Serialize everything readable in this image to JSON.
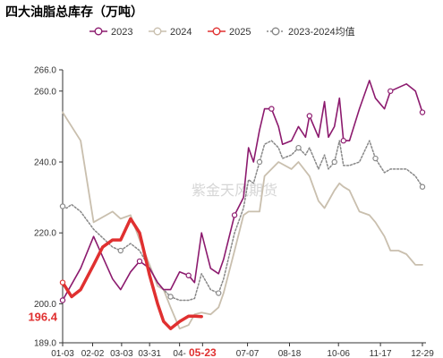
{
  "chart_data": {
    "type": "line",
    "title": "四大油脂总库存（万吨）",
    "watermark": "紫金天风期货",
    "xlabel": "",
    "ylabel": "",
    "ylim": [
      189.0,
      266.0
    ],
    "y_ticks": [
      "266.0",
      "260.0",
      "240.0",
      "220.0",
      "200.0",
      "189.0"
    ],
    "x_range": [
      "01-03",
      "12-29"
    ],
    "x_ticks": [
      "01-03",
      "02-02",
      "03-03",
      "03-31",
      "04-",
      "05-23",
      "07-07",
      "08-18",
      "10-06",
      "11-17",
      "12-29"
    ],
    "highlight_label": "196.4",
    "grid": false,
    "legend_position": "top",
    "series": [
      {
        "name": "2023",
        "color": "#8c1a6e",
        "marker": "circle",
        "points": [
          [
            "01-03",
            201.0
          ],
          [
            "01-21",
            210.0
          ],
          [
            "02-03",
            219.0
          ],
          [
            "02-22",
            207.0
          ],
          [
            "03-02",
            204.0
          ],
          [
            "03-12",
            209.0
          ],
          [
            "03-21",
            212.0
          ],
          [
            "03-31",
            210.0
          ],
          [
            "04-08",
            206.0
          ],
          [
            "04-14",
            204.0
          ],
          [
            "04-21",
            204.0
          ],
          [
            "04-30",
            209.0
          ],
          [
            "05-09",
            208.0
          ],
          [
            "05-15",
            206.0
          ],
          [
            "05-22",
            220.0
          ],
          [
            "05-31",
            210.0
          ],
          [
            "06-08",
            208.5
          ],
          [
            "06-13",
            212.5
          ],
          [
            "06-24",
            225.0
          ],
          [
            "07-03",
            230.0
          ],
          [
            "07-08",
            244.0
          ],
          [
            "07-13",
            240.0
          ],
          [
            "07-19",
            249.0
          ],
          [
            "07-24",
            255.0
          ],
          [
            "07-31",
            255.0
          ],
          [
            "08-07",
            250.0
          ],
          [
            "08-11",
            245.0
          ],
          [
            "08-20",
            246.0
          ],
          [
            "08-27",
            250.0
          ],
          [
            "09-03",
            247.0
          ],
          [
            "09-07",
            253.0
          ],
          [
            "09-16",
            247.0
          ],
          [
            "09-22",
            257.0
          ],
          [
            "09-26",
            247.0
          ],
          [
            "10-02",
            250.0
          ],
          [
            "10-07",
            258.0
          ],
          [
            "10-11",
            246.0
          ],
          [
            "10-17",
            246.0
          ],
          [
            "10-27",
            255.0
          ],
          [
            "11-06",
            263.0
          ],
          [
            "11-12",
            258.0
          ],
          [
            "11-21",
            255.0
          ],
          [
            "11-27",
            260.0
          ],
          [
            "12-05",
            261.0
          ],
          [
            "12-13",
            262.0
          ],
          [
            "12-22",
            260.0
          ],
          [
            "12-29",
            254.0
          ]
        ]
      },
      {
        "name": "2024",
        "color": "#c9bfae",
        "marker": "none",
        "points": [
          [
            "01-03",
            254.0
          ],
          [
            "01-21",
            246.0
          ],
          [
            "02-03",
            223.0
          ],
          [
            "02-22",
            226.0
          ],
          [
            "03-02",
            224.0
          ],
          [
            "03-12",
            225.0
          ],
          [
            "03-21",
            218.0
          ],
          [
            "03-31",
            211.0
          ],
          [
            "04-08",
            205.0
          ],
          [
            "04-14",
            204.0
          ],
          [
            "04-21",
            199.0
          ],
          [
            "04-30",
            193.0
          ],
          [
            "05-09",
            194.0
          ],
          [
            "05-15",
            197.0
          ],
          [
            "05-22",
            197.5
          ],
          [
            "05-31",
            197.0
          ],
          [
            "06-08",
            199.0
          ],
          [
            "06-13",
            203.0
          ],
          [
            "06-24",
            215.0
          ],
          [
            "07-03",
            225.0
          ],
          [
            "07-08",
            226.0
          ],
          [
            "07-19",
            226.0
          ],
          [
            "07-24",
            236.0
          ],
          [
            "08-07",
            240.0
          ],
          [
            "08-20",
            238.0
          ],
          [
            "08-27",
            240.0
          ],
          [
            "09-07",
            236.0
          ],
          [
            "09-16",
            229.0
          ],
          [
            "09-22",
            227.0
          ],
          [
            "10-02",
            232.0
          ],
          [
            "10-07",
            234.0
          ],
          [
            "10-11",
            233.0
          ],
          [
            "10-17",
            232.0
          ],
          [
            "10-27",
            226.0
          ],
          [
            "11-06",
            225.0
          ],
          [
            "11-12",
            223.0
          ],
          [
            "11-21",
            219.0
          ],
          [
            "11-27",
            215.0
          ],
          [
            "12-05",
            215.0
          ],
          [
            "12-13",
            214.0
          ],
          [
            "12-22",
            211.0
          ],
          [
            "12-29",
            211.0
          ]
        ]
      },
      {
        "name": "2025",
        "color": "#e03030",
        "marker": "circle",
        "points": [
          [
            "01-03",
            206.0
          ],
          [
            "01-12",
            202.0
          ],
          [
            "01-21",
            204.0
          ],
          [
            "02-03",
            211.0
          ],
          [
            "02-12",
            216.0
          ],
          [
            "02-22",
            218.0
          ],
          [
            "03-02",
            218.0
          ],
          [
            "03-12",
            224.0
          ],
          [
            "03-21",
            220.0
          ],
          [
            "03-31",
            208.0
          ],
          [
            "04-08",
            200.0
          ],
          [
            "04-14",
            195.0
          ],
          [
            "04-21",
            193.0
          ],
          [
            "04-30",
            195.0
          ],
          [
            "05-09",
            196.5
          ],
          [
            "05-15",
            196.5
          ],
          [
            "05-22",
            196.4
          ]
        ]
      },
      {
        "name": "2023-2024均值",
        "color": "#888888",
        "marker": "circle",
        "dashed": true,
        "points": [
          [
            "01-03",
            227.5
          ],
          [
            "01-07",
            227.0
          ],
          [
            "01-12",
            228.0
          ],
          [
            "01-21",
            226.0
          ],
          [
            "02-03",
            221.0
          ],
          [
            "02-22",
            216.0
          ],
          [
            "03-02",
            215.0
          ],
          [
            "03-12",
            217.0
          ],
          [
            "03-21",
            215.0
          ],
          [
            "03-31",
            210.0
          ],
          [
            "04-08",
            206.0
          ],
          [
            "04-14",
            204.0
          ],
          [
            "04-21",
            202.0
          ],
          [
            "04-30",
            201.0
          ],
          [
            "05-09",
            201.0
          ],
          [
            "05-15",
            201.5
          ],
          [
            "05-22",
            208.5
          ],
          [
            "05-31",
            204.0
          ],
          [
            "06-08",
            203.0
          ],
          [
            "06-13",
            207.0
          ],
          [
            "06-24",
            220.0
          ],
          [
            "07-03",
            227.0
          ],
          [
            "07-08",
            235.0
          ],
          [
            "07-13",
            234.0
          ],
          [
            "07-19",
            240.0
          ],
          [
            "07-24",
            245.0
          ],
          [
            "07-31",
            246.0
          ],
          [
            "08-07",
            244.0
          ],
          [
            "08-11",
            241.0
          ],
          [
            "08-20",
            242.0
          ],
          [
            "08-27",
            244.0
          ],
          [
            "09-03",
            242.0
          ],
          [
            "09-07",
            244.0
          ],
          [
            "09-16",
            238.0
          ],
          [
            "09-22",
            242.0
          ],
          [
            "09-26",
            238.0
          ],
          [
            "10-02",
            240.0
          ],
          [
            "10-07",
            246.0
          ],
          [
            "10-11",
            239.0
          ],
          [
            "10-17",
            239.0
          ],
          [
            "10-27",
            240.0
          ],
          [
            "11-06",
            246.0
          ],
          [
            "11-12",
            241.0
          ],
          [
            "11-21",
            237.0
          ],
          [
            "11-27",
            238.0
          ],
          [
            "12-05",
            238.0
          ],
          [
            "12-13",
            238.0
          ],
          [
            "12-22",
            236.0
          ],
          [
            "12-29",
            233.0
          ]
        ]
      }
    ]
  }
}
